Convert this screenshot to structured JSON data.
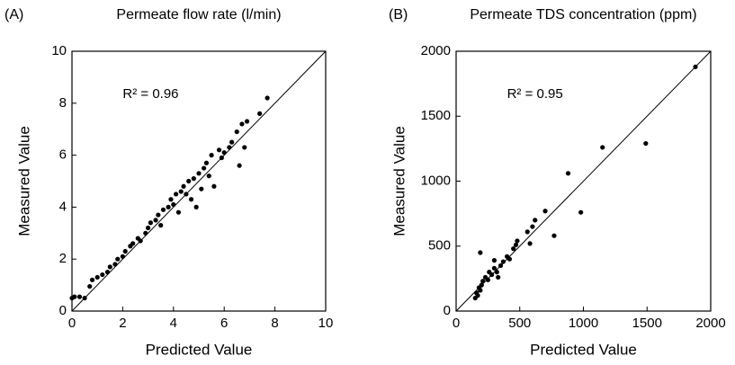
{
  "chart_data": [
    {
      "type": "scatter",
      "panel_label": "(A)",
      "title": "Permeate flow rate (l/min)",
      "annotation": "R²  = 0.96",
      "x_label": "Predicted Value",
      "y_label": "Measured Value",
      "color": "#000000",
      "identity_line": true,
      "xlim": [
        0,
        10
      ],
      "ylim": [
        0,
        10
      ],
      "xticks": [
        0,
        2,
        4,
        6,
        8,
        10
      ],
      "yticks": [
        0,
        2,
        4,
        6,
        8,
        10
      ],
      "x": [
        0.0,
        0.1,
        0.3,
        0.5,
        0.7,
        0.8,
        1.0,
        1.2,
        1.4,
        1.5,
        1.7,
        1.8,
        2.0,
        2.1,
        2.3,
        2.4,
        2.6,
        2.7,
        2.9,
        3.0,
        3.1,
        3.3,
        3.4,
        3.5,
        3.6,
        3.8,
        3.9,
        4.0,
        4.1,
        4.2,
        4.3,
        4.4,
        4.5,
        4.6,
        4.7,
        4.8,
        4.9,
        5.0,
        5.1,
        5.2,
        5.3,
        5.4,
        5.5,
        5.6,
        5.8,
        5.9,
        6.0,
        6.2,
        6.3,
        6.5,
        6.6,
        6.7,
        6.8,
        6.9,
        7.4,
        7.7
      ],
      "values": [
        0.5,
        0.55,
        0.55,
        0.5,
        0.95,
        1.2,
        1.3,
        1.4,
        1.5,
        1.7,
        1.8,
        2.0,
        2.1,
        2.3,
        2.5,
        2.6,
        2.8,
        2.7,
        3.0,
        3.2,
        3.4,
        3.5,
        3.7,
        3.3,
        3.9,
        4.0,
        4.3,
        4.1,
        4.5,
        3.8,
        4.6,
        4.8,
        4.5,
        5.0,
        4.3,
        5.1,
        4.0,
        5.3,
        4.7,
        5.5,
        5.7,
        5.2,
        6.0,
        4.8,
        6.2,
        5.9,
        6.1,
        6.3,
        6.5,
        6.9,
        5.6,
        7.2,
        6.3,
        7.3,
        7.6,
        8.2
      ]
    },
    {
      "type": "scatter",
      "panel_label": "(B)",
      "title": "Permeate TDS concentration (ppm)",
      "annotation": "R²  = 0.95",
      "x_label": "Predicted Value",
      "y_label": "Measured Value",
      "color": "#000000",
      "identity_line": true,
      "xlim": [
        0,
        2000
      ],
      "ylim": [
        0,
        2000
      ],
      "xticks": [
        0,
        500,
        1000,
        1500,
        2000
      ],
      "yticks": [
        0,
        500,
        1000,
        1500,
        2000
      ],
      "x": [
        150,
        160,
        170,
        180,
        190,
        200,
        210,
        190,
        230,
        250,
        260,
        280,
        300,
        320,
        350,
        370,
        400,
        420,
        450,
        470,
        480,
        560,
        580,
        600,
        620,
        700,
        770,
        880,
        980,
        1150,
        1490,
        1880,
        300,
        330
      ],
      "values": [
        100,
        140,
        120,
        180,
        160,
        200,
        230,
        450,
        260,
        240,
        300,
        280,
        330,
        300,
        350,
        380,
        420,
        400,
        480,
        510,
        540,
        610,
        520,
        650,
        700,
        770,
        580,
        1060,
        760,
        1260,
        1290,
        1880,
        390,
        260
      ]
    }
  ]
}
